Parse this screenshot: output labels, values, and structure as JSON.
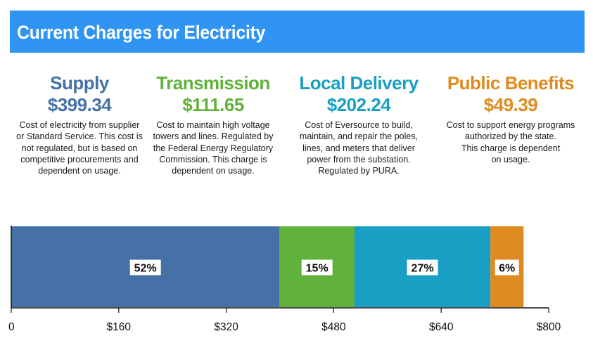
{
  "banner": {
    "title": "Current Charges for Electricity",
    "color": "#2f94f2"
  },
  "charges": [
    {
      "name": "Supply",
      "amount": "$399.34",
      "color": "#4571a7",
      "description": [
        "Cost of electricity from supplier",
        "or Standard Service. This cost is",
        "not regulated, but is based on",
        "competitive procurements and",
        "dependent on usage."
      ]
    },
    {
      "name": "Transmission",
      "amount": "$111.65",
      "color": "#61b23a",
      "description": [
        "Cost to maintain high voltage",
        "towers and lines. Regulated by",
        "the Federal Energy Regulatory",
        "Commission. This charge is",
        "dependent on usage."
      ]
    },
    {
      "name": "Local Delivery",
      "amount": "$202.24",
      "color": "#1a9fc4",
      "description": [
        "Cost of Eversource to build,",
        "maintain, and repair the poles,",
        "lines, and meters that deliver",
        "power from the substation.",
        "Regulated by PURA."
      ]
    },
    {
      "name": "Public Benefits",
      "amount": "$49.39",
      "color": "#df8b20",
      "description": [
        "Cost to support energy programs",
        "authorized by the state.",
        "This charge is dependent",
        "on usage."
      ]
    }
  ],
  "chart_data": {
    "type": "bar",
    "orientation": "horizontal-stacked",
    "categories": [
      "Supply",
      "Transmission",
      "Local Delivery",
      "Public Benefits"
    ],
    "values": [
      399.34,
      111.65,
      202.24,
      49.39
    ],
    "percent_labels": [
      "52%",
      "15%",
      "27%",
      "6%"
    ],
    "colors": [
      "#4571a7",
      "#61b23a",
      "#1a9fc4",
      "#df8b20"
    ],
    "xlim": [
      0,
      800
    ],
    "x_ticks": [
      0,
      160,
      320,
      480,
      640,
      800
    ],
    "x_tick_labels": [
      "0",
      "$160",
      "$320",
      "$480",
      "$640",
      "$800"
    ],
    "grid": false,
    "legend": "none"
  }
}
